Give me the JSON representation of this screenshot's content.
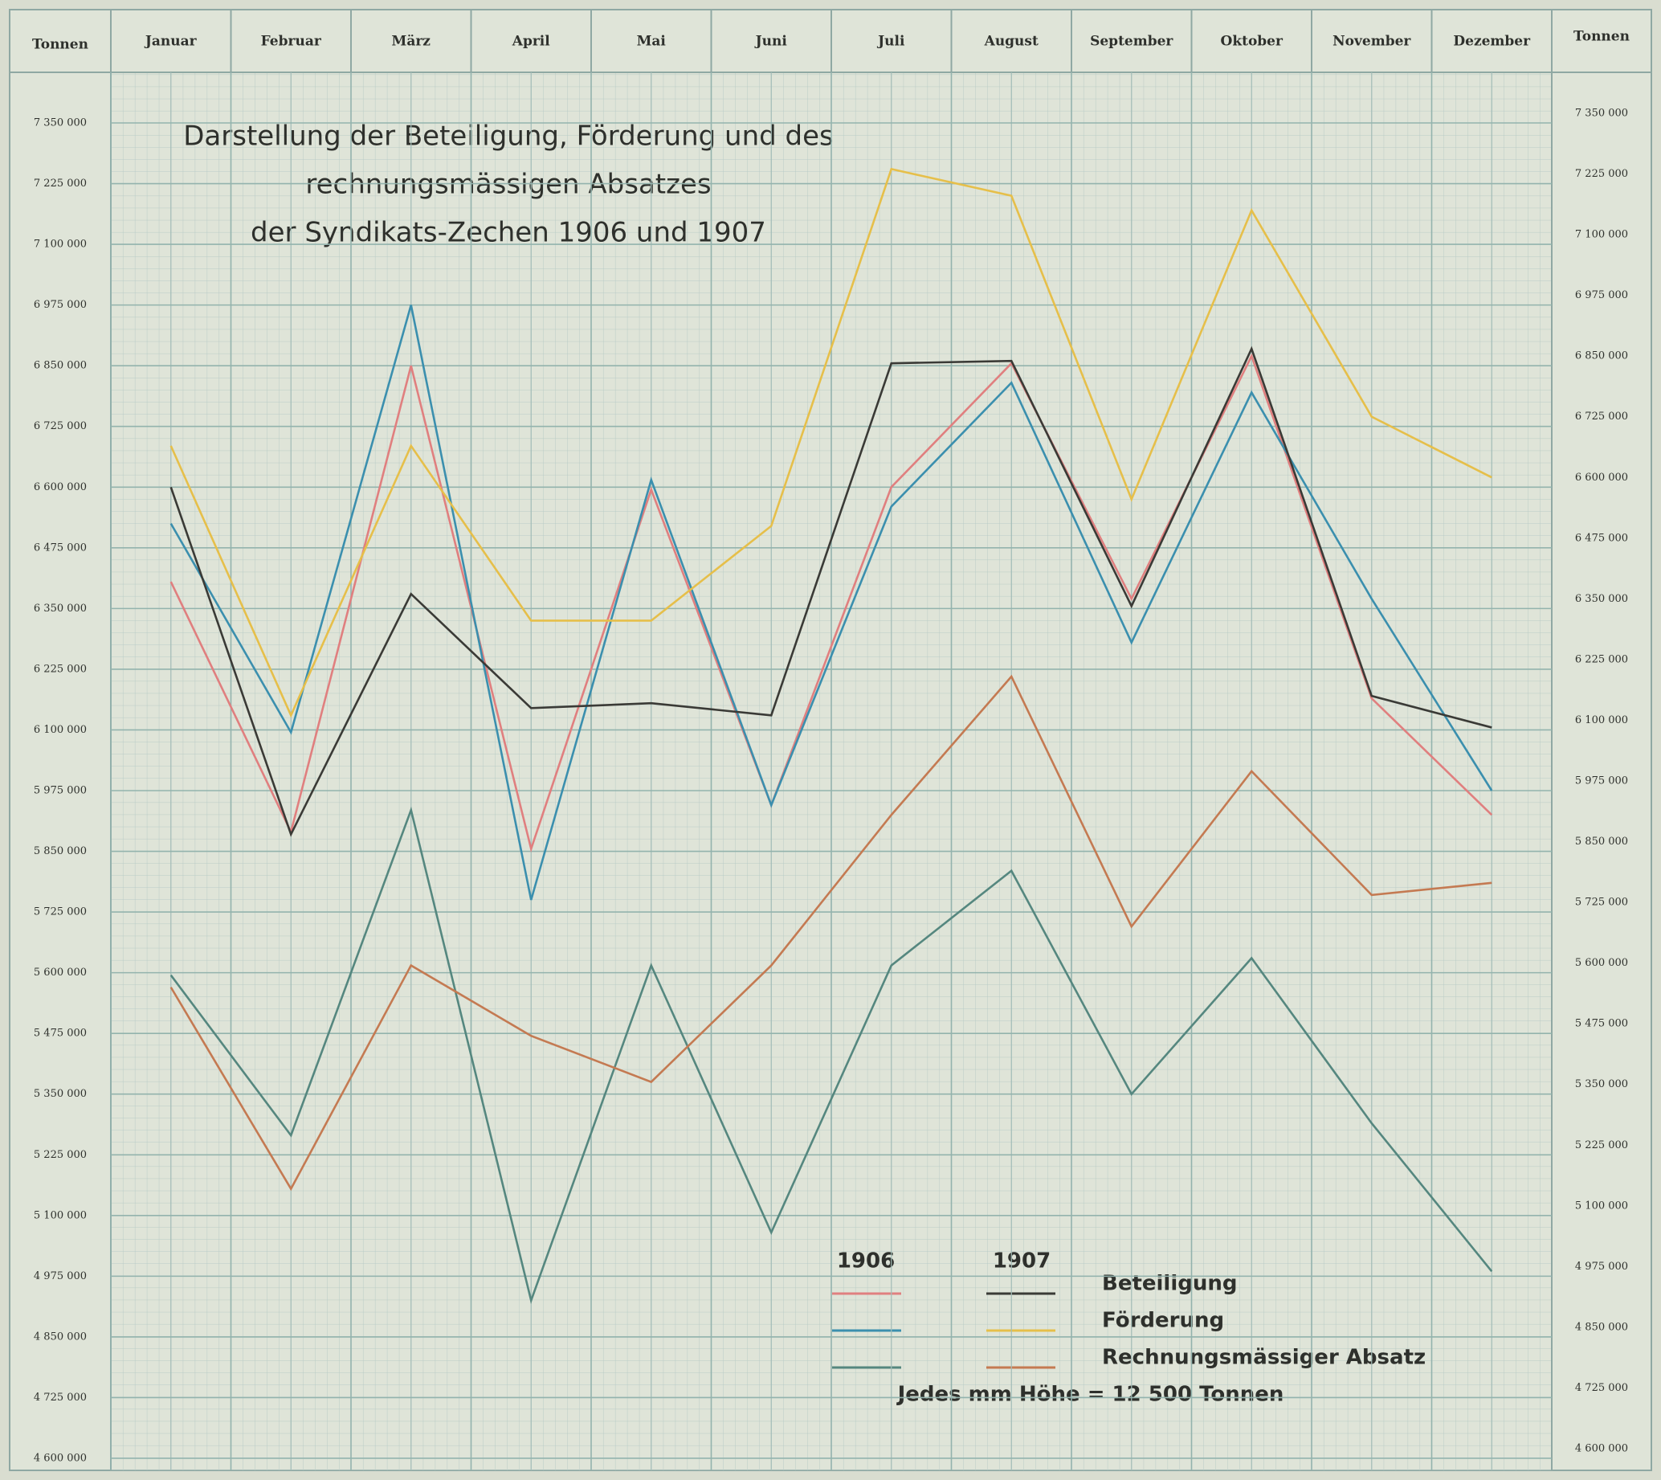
{
  "chart_data": {
    "type": "line",
    "title": [
      "Darstellung der Beteiligung, Förderung und des",
      "rechnungsmässigen Absatzes",
      "der Syndikats-Zechen 1906 und 1907"
    ],
    "ylabel": "Tonnen",
    "categories": [
      "Januar",
      "Februar",
      "März",
      "April",
      "Mai",
      "Juni",
      "Juli",
      "August",
      "September",
      "Oktober",
      "November",
      "Dezember"
    ],
    "series": [
      {
        "name": "Beteiligung",
        "year": "1906",
        "color": "#e07f7f",
        "values": [
          6405000,
          5890000,
          6850000,
          5855000,
          6595000,
          5945000,
          6600000,
          6855000,
          6370000,
          6870000,
          6165000,
          5925000
        ]
      },
      {
        "name": "Förderung",
        "year": "1906",
        "color": "#3b8fae",
        "values": [
          6525000,
          6095000,
          6975000,
          5750000,
          6615000,
          5945000,
          6560000,
          6815000,
          6280000,
          6795000,
          6370000,
          5975000
        ]
      },
      {
        "name": "Rechnungsmässiger Absatz",
        "year": "1906",
        "color": "#55877f",
        "values": [
          5595000,
          5265000,
          5935000,
          4925000,
          5615000,
          5065000,
          5615000,
          5810000,
          5350000,
          5630000,
          5290000,
          4985000
        ]
      },
      {
        "name": "Beteiligung",
        "year": "1907",
        "color": "#3a3a36",
        "values": [
          6600000,
          5885000,
          6380000,
          6145000,
          6155000,
          6130000,
          6855000,
          6860000,
          6355000,
          6885000,
          6170000,
          6105000
        ]
      },
      {
        "name": "Förderung",
        "year": "1907",
        "color": "#e6bf4a",
        "values": [
          6685000,
          6130000,
          6685000,
          6325000,
          6325000,
          6520000,
          7255000,
          7200000,
          6575000,
          7170000,
          6745000,
          6620000
        ]
      },
      {
        "name": "Rechnungsmässiger Absatz",
        "year": "1907",
        "color": "#c47a52",
        "values": [
          5570000,
          5155000,
          5615000,
          5470000,
          5375000,
          5615000,
          5925000,
          6210000,
          5695000,
          6015000,
          5760000,
          5785000
        ]
      }
    ],
    "ylim": [
      4600000,
      7350000
    ],
    "yticks": [
      {
        "value": 4600000,
        "label": "4 600 000"
      },
      {
        "value": 4725000,
        "label": "4 725 000"
      },
      {
        "value": 4850000,
        "label": "4 850 000"
      },
      {
        "value": 4975000,
        "label": "4 975 000"
      },
      {
        "value": 5100000,
        "label": "5 100 000"
      },
      {
        "value": 5225000,
        "label": "5 225 000"
      },
      {
        "value": 5350000,
        "label": "5 350 000"
      },
      {
        "value": 5475000,
        "label": "5 475 000"
      },
      {
        "value": 5600000,
        "label": "5 600 000"
      },
      {
        "value": 5725000,
        "label": "5 725 000"
      },
      {
        "value": 5850000,
        "label": "5 850 000"
      },
      {
        "value": 5975000,
        "label": "5 975 000"
      },
      {
        "value": 6100000,
        "label": "6 100 000"
      },
      {
        "value": 6225000,
        "label": "6 225 000"
      },
      {
        "value": 6350000,
        "label": "6 350 000"
      },
      {
        "value": 6475000,
        "label": "6 475 000"
      },
      {
        "value": 6600000,
        "label": "6 600 000"
      },
      {
        "value": 6725000,
        "label": "6 725 000"
      },
      {
        "value": 6850000,
        "label": "6 850 000"
      },
      {
        "value": 6975000,
        "label": "6 975 000"
      },
      {
        "value": 7100000,
        "label": "7 100 000"
      },
      {
        "value": 7225000,
        "label": "7 225 000"
      },
      {
        "value": 7350000,
        "label": "7 350 000"
      }
    ],
    "note": "Jedes mm Höhe = 12 500 Tonnen",
    "grid": true
  }
}
